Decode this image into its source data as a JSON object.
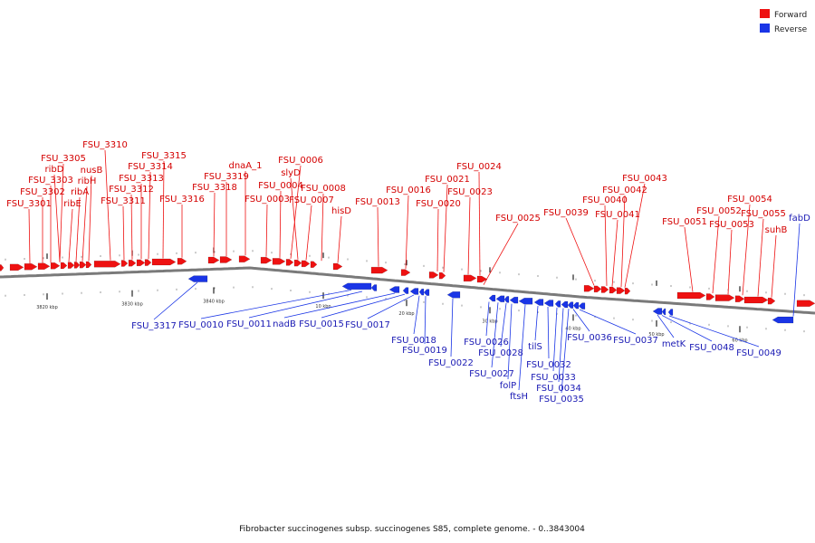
{
  "legend": {
    "forward_label": "Forward",
    "reverse_label": "Reverse",
    "forward_color": "#ee1111",
    "reverse_color": "#1a35e6"
  },
  "caption": "Fibrobacter succinogenes subsp. succinogenes S85, complete genome. - 0..3843004",
  "backbone_color": "#7a7a7a",
  "scale_labels": [
    "3820 kbp",
    "3830 kbp",
    "3840 kbp",
    "10 kbp",
    "20 kbp",
    "30 kbp",
    "40 kbp",
    "50 kbp",
    "60 kbp"
  ],
  "forward_genes": [
    "FSU_3301",
    "FSU_3302",
    "FSU_3303",
    "FSU_3305",
    "ribD",
    "ribE",
    "ribA",
    "ribH",
    "nusB",
    "FSU_3310",
    "FSU_3311",
    "FSU_3312",
    "FSU_3313",
    "FSU_3314",
    "FSU_3315",
    "FSU_3316",
    "FSU_3318",
    "FSU_3319",
    "dnaA_1",
    "FSU_0003",
    "FSU_0004",
    "FSU_0006",
    "slyD",
    "FSU_0007",
    "FSU_0008",
    "hisD",
    "FSU_0013",
    "FSU_0016",
    "FSU_0020",
    "FSU_0021",
    "FSU_0023",
    "FSU_0024",
    "FSU_0025",
    "FSU_0039",
    "FSU_0040",
    "FSU_0041",
    "FSU_0042",
    "FSU_0043",
    "FSU_0051",
    "FSU_0052",
    "FSU_0053",
    "FSU_0054",
    "FSU_0055",
    "suhB"
  ],
  "reverse_genes": [
    "FSU_3317",
    "FSU_0010",
    "FSU_0011",
    "nadB",
    "FSU_0015",
    "FSU_0017",
    "FSU_0018",
    "FSU_0019",
    "FSU_0022",
    "FSU_0026",
    "FSU_0027",
    "FSU_0028",
    "folP",
    "ftsH",
    "tilS",
    "FSU_0032",
    "FSU_0033",
    "FSU_0034",
    "FSU_0035",
    "FSU_0036",
    "FSU_0037",
    "metK",
    "FSU_0048",
    "FSU_0049",
    "fabD"
  ]
}
